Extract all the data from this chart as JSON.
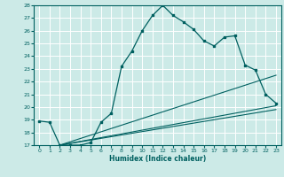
{
  "xlabel": "Humidex (Indice chaleur)",
  "bg_color": "#cceae7",
  "grid_color": "#ffffff",
  "line_color": "#006060",
  "xlim": [
    -0.5,
    23.5
  ],
  "ylim": [
    17,
    28
  ],
  "xticks": [
    0,
    1,
    2,
    3,
    4,
    5,
    6,
    7,
    8,
    9,
    10,
    11,
    12,
    13,
    14,
    15,
    16,
    17,
    18,
    19,
    20,
    21,
    22,
    23
  ],
  "yticks": [
    17,
    18,
    19,
    20,
    21,
    22,
    23,
    24,
    25,
    26,
    27,
    28
  ],
  "main_x": [
    0,
    1,
    2,
    3,
    4,
    5,
    6,
    7,
    8,
    9,
    10,
    11,
    12,
    13,
    14,
    15,
    16,
    17,
    18,
    19,
    20,
    21,
    22,
    23
  ],
  "main_y": [
    18.9,
    18.8,
    17.0,
    17.0,
    17.0,
    17.2,
    18.8,
    19.5,
    23.2,
    24.4,
    26.0,
    27.2,
    28.0,
    27.2,
    26.7,
    26.1,
    25.2,
    24.8,
    25.5,
    25.6,
    23.3,
    22.9,
    21.0,
    20.3
  ],
  "line1_x": [
    2,
    23
  ],
  "line1_y": [
    17.0,
    22.5
  ],
  "line2_x": [
    2,
    23
  ],
  "line2_y": [
    17.0,
    19.8
  ],
  "line3_x": [
    2,
    23
  ],
  "line3_y": [
    17.0,
    20.1
  ]
}
